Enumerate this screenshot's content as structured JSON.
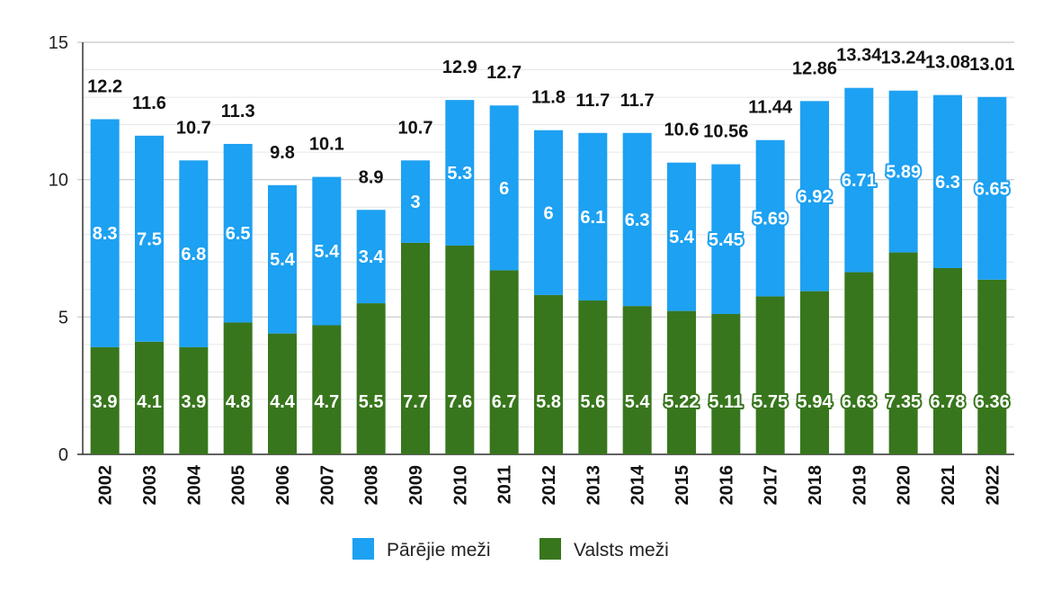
{
  "chart_data": {
    "type": "bar",
    "stacked": true,
    "categories": [
      "2002",
      "2003",
      "2004",
      "2005",
      "2006",
      "2007",
      "2008",
      "2009",
      "2010",
      "2011",
      "2012",
      "2013",
      "2014",
      "2015",
      "2016",
      "2017",
      "2018",
      "2019",
      "2020",
      "2021",
      "2022"
    ],
    "series": [
      {
        "name": "Valsts meži",
        "color": "#38761d",
        "values": [
          3.9,
          4.1,
          3.9,
          4.8,
          4.4,
          4.7,
          5.5,
          7.7,
          7.6,
          6.7,
          5.8,
          5.6,
          5.4,
          5.22,
          5.11,
          5.75,
          5.94,
          6.63,
          7.35,
          6.78,
          6.36
        ],
        "labels": [
          "3.9",
          "4.1",
          "3.9",
          "4.8",
          "4.4",
          "4.7",
          "5.5",
          "7.7",
          "7.6",
          "6.7",
          "5.8",
          "5.6",
          "5.4",
          "5.22",
          "5.11",
          "5.75",
          "5.94",
          "6.63",
          "7.35",
          "6.78",
          "6.36"
        ]
      },
      {
        "name": "Pārējie meži",
        "color": "#1da1f2",
        "values": [
          8.3,
          7.5,
          6.8,
          6.5,
          5.4,
          5.4,
          3.4,
          3,
          5.3,
          6,
          6,
          6.1,
          6.3,
          5.4,
          5.45,
          5.69,
          6.92,
          6.71,
          5.89,
          6.3,
          6.65
        ],
        "labels": [
          "8.3",
          "7.5",
          "6.8",
          "6.5",
          "5.4",
          "5.4",
          "3.4",
          "3",
          "5.3",
          "6",
          "6",
          "6.1",
          "6.3",
          "5.4",
          "5.45",
          "5.69",
          "6.92",
          "6.71",
          "5.89",
          "6.3",
          "6.65"
        ]
      }
    ],
    "totals": [
      "12.2",
      "11.6",
      "10.7",
      "11.3",
      "9.8",
      "10.1",
      "8.9",
      "10.7",
      "12.9",
      "12.7",
      "11.8",
      "11.7",
      "11.7",
      "10.6",
      "10.56",
      "11.44",
      "12.86",
      "13.34",
      "13.24",
      "13.08",
      "13.01"
    ],
    "ylim": [
      0,
      15
    ],
    "yticks": [
      "0",
      "5",
      "10",
      "15"
    ],
    "grid": true,
    "legend_position": "bottom",
    "legend_order": [
      "Pārējie meži",
      "Valsts meži"
    ],
    "title": "",
    "xlabel": "",
    "ylabel": ""
  }
}
